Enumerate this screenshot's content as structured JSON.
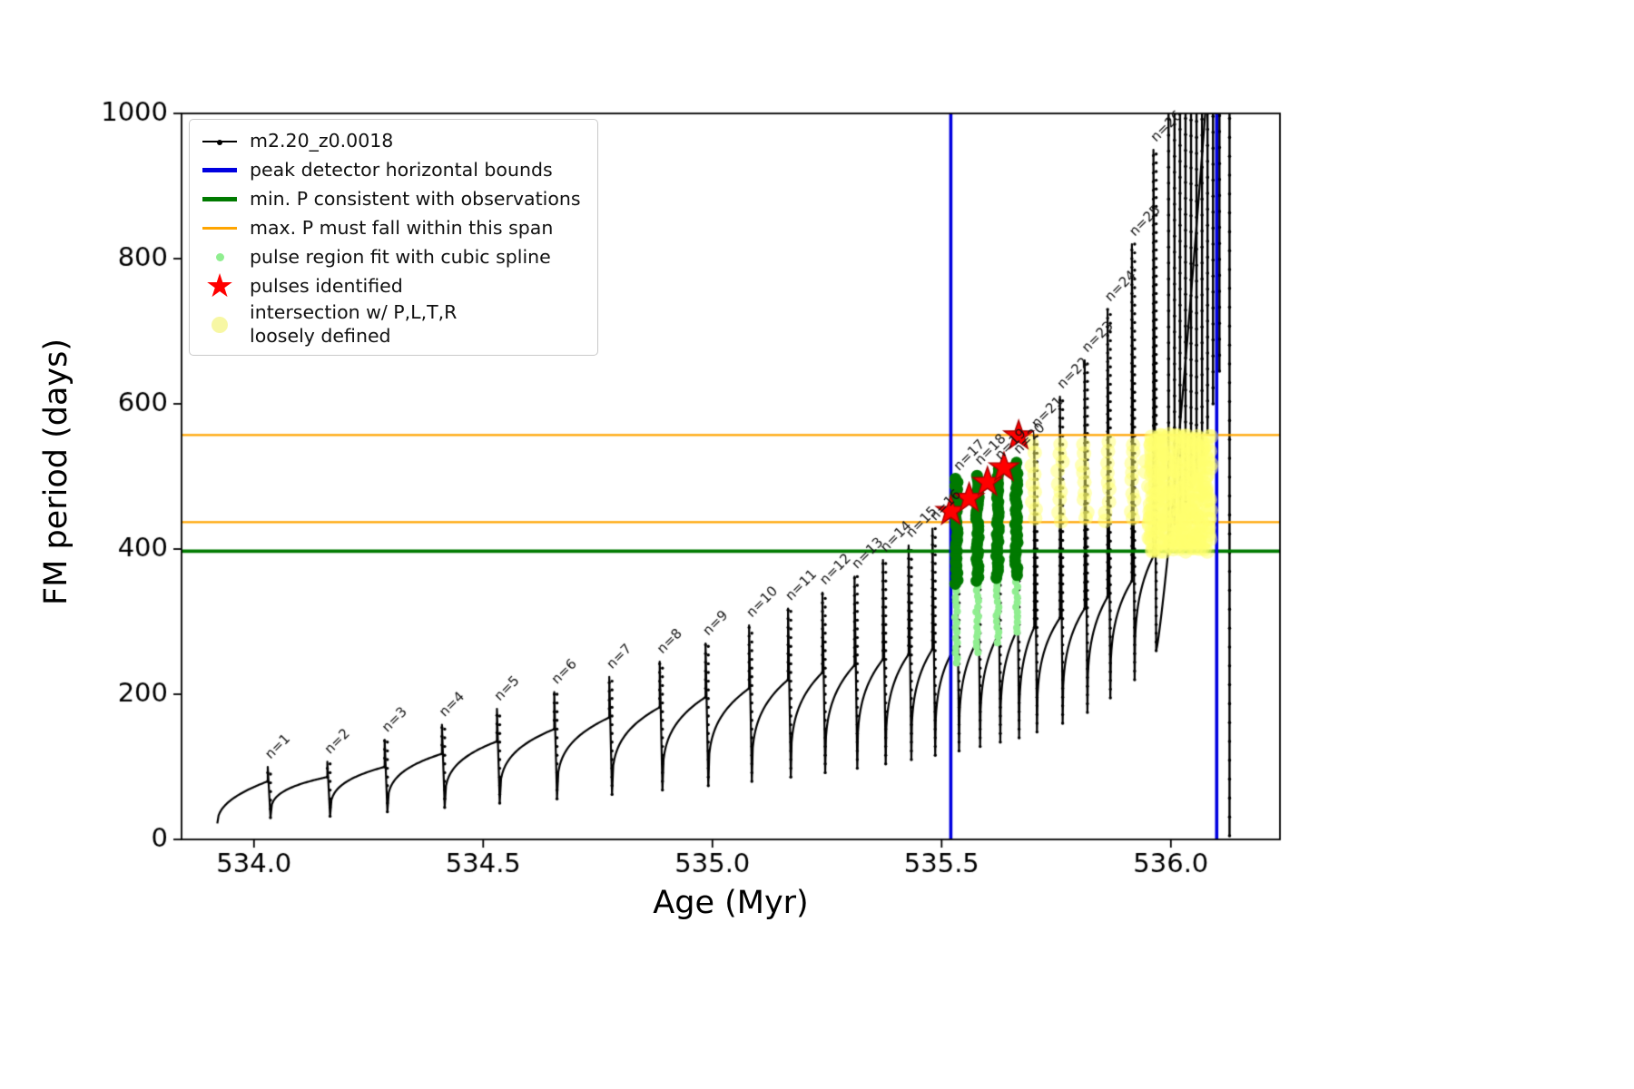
{
  "chart_data": {
    "type": "line",
    "title": "",
    "xlabel": "Age (Myr)",
    "ylabel": "FM period (days)",
    "xlim": [
      533.842,
      536.238
    ],
    "ylim": [
      0,
      1000
    ],
    "xticks": [
      534.0,
      534.5,
      535.0,
      535.5,
      536.0
    ],
    "xtick_labels": [
      "534.0",
      "534.5",
      "535.0",
      "535.5",
      "536.0"
    ],
    "yticks": [
      0,
      200,
      400,
      600,
      800,
      1000
    ],
    "ytick_labels": [
      "0",
      "200",
      "400",
      "600",
      "800",
      "1000"
    ],
    "series_name": "m2.20_z0.0018",
    "colors": {
      "track": "#000000",
      "bounds": "#0000e0",
      "min_p": "#007a00",
      "max_p": "#ffa500",
      "spline_light": "#90ee90",
      "spline_dark": "#007a00",
      "pulse_star": "#ff0000",
      "star_edge": "#a80000",
      "intersection": "rgba(255,255,110,0.5)",
      "label_text": "#111111"
    },
    "peak_detector_bounds_x": [
      535.52,
      536.1
    ],
    "min_p_consistent": 397,
    "max_p_span": [
      437,
      557
    ],
    "pre_track": {
      "t0": 533.92,
      "v0": 22,
      "exp": 0.45
    },
    "rise_exp": 0.3,
    "spike_width": 0.006,
    "pulses": [
      {
        "n": 1,
        "label": "n=1",
        "t": 534.03,
        "peak": 100,
        "plateau": 80,
        "dip": 30
      },
      {
        "n": 2,
        "label": "n=2",
        "t": 534.16,
        "peak": 107,
        "plateau": 86,
        "dip": 32
      },
      {
        "n": 3,
        "label": "n=3",
        "t": 534.285,
        "peak": 137,
        "plateau": 100,
        "dip": 38
      },
      {
        "n": 4,
        "label": "n=4",
        "t": 534.41,
        "peak": 158,
        "plateau": 118,
        "dip": 44
      },
      {
        "n": 5,
        "label": "n=5",
        "t": 534.53,
        "peak": 180,
        "plateau": 135,
        "dip": 50
      },
      {
        "n": 6,
        "label": "n=6",
        "t": 534.655,
        "peak": 203,
        "plateau": 152,
        "dip": 56
      },
      {
        "n": 7,
        "label": "n=7",
        "t": 534.775,
        "peak": 224,
        "plateau": 168,
        "dip": 62
      },
      {
        "n": 8,
        "label": "n=8",
        "t": 534.885,
        "peak": 245,
        "plateau": 182,
        "dip": 68
      },
      {
        "n": 9,
        "label": "n=9",
        "t": 534.985,
        "peak": 270,
        "plateau": 196,
        "dip": 74
      },
      {
        "n": 10,
        "label": "n=10",
        "t": 535.08,
        "peak": 295,
        "plateau": 208,
        "dip": 80
      },
      {
        "n": 11,
        "label": "n=11",
        "t": 535.165,
        "peak": 318,
        "plateau": 220,
        "dip": 86
      },
      {
        "n": 12,
        "label": "n=12",
        "t": 535.24,
        "peak": 340,
        "plateau": 230,
        "dip": 92
      },
      {
        "n": 13,
        "label": "n=13",
        "t": 535.31,
        "peak": 362,
        "plateau": 240,
        "dip": 98
      },
      {
        "n": 14,
        "label": "n=14",
        "t": 535.372,
        "peak": 385,
        "plateau": 248,
        "dip": 104
      },
      {
        "n": 15,
        "label": "n=15",
        "t": 535.428,
        "peak": 405,
        "plateau": 255,
        "dip": 110
      },
      {
        "n": 16,
        "label": "n=16",
        "t": 535.48,
        "peak": 428,
        "plateau": 262,
        "dip": 116
      },
      {
        "n": 17,
        "label": "n=17",
        "t": 535.532,
        "peak": 497,
        "plateau": 268,
        "dip": 122
      },
      {
        "n": 18,
        "label": "n=18",
        "t": 535.578,
        "peak": 505,
        "plateau": 274,
        "dip": 128
      },
      {
        "n": 19,
        "label": "n=19",
        "t": 535.622,
        "peak": 512,
        "plateau": 280,
        "dip": 134
      },
      {
        "n": 20,
        "label": "n=20",
        "t": 535.663,
        "peak": 520,
        "plateau": 286,
        "dip": 140
      },
      {
        "n": 21,
        "label": "n=21",
        "t": 535.702,
        "peak": 556,
        "plateau": 292,
        "dip": 148
      },
      {
        "n": 22,
        "label": "n=22",
        "t": 535.758,
        "peak": 610,
        "plateau": 305,
        "dip": 160
      },
      {
        "n": 23,
        "label": "n=23",
        "t": 535.812,
        "peak": 660,
        "plateau": 318,
        "dip": 175
      },
      {
        "n": 24,
        "label": "n=24",
        "t": 535.862,
        "peak": 730,
        "plateau": 334,
        "dip": 195
      },
      {
        "n": 25,
        "label": "n=25",
        "t": 535.915,
        "peak": 820,
        "plateau": 356,
        "dip": 220
      },
      {
        "n": 26,
        "label": "n=26",
        "t": 535.962,
        "peak": 950,
        "plateau": 390,
        "dip": 260
      }
    ],
    "final_rise": {
      "t1": 536.075,
      "v1": 1000,
      "exp": 1.2,
      "flat_to": 536.103
    },
    "band_spikes": {
      "x": [
        535.995,
        536.008,
        536.02,
        536.032,
        536.044,
        536.056,
        536.068,
        536.08,
        536.092,
        536.106
      ],
      "lo": [
        420,
        435,
        450,
        465,
        485,
        505,
        530,
        560,
        600,
        645
      ],
      "hi": 1000
    },
    "end_line": {
      "x": 536.128,
      "lo": 5,
      "hi": 1000
    },
    "spline_columns": [
      {
        "x": 535.532,
        "light_lo": 243,
        "dark_lo": 352,
        "hi": 497
      },
      {
        "x": 535.578,
        "light_lo": 258,
        "dark_lo": 356,
        "hi": 505
      },
      {
        "x": 535.622,
        "light_lo": 272,
        "dark_lo": 360,
        "hi": 512
      },
      {
        "x": 535.663,
        "light_lo": 285,
        "dark_lo": 364,
        "hi": 520
      }
    ],
    "stars": [
      [
        535.52,
        452
      ],
      [
        535.56,
        470
      ],
      [
        535.6,
        492
      ],
      [
        535.636,
        512
      ],
      [
        535.668,
        556
      ]
    ],
    "yellow": {
      "columns_x": [
        535.702,
        535.758,
        535.812,
        535.862,
        535.915
      ],
      "col_y": [
        440,
        556,
        13
      ],
      "blob_x": [
        535.952,
        536.085,
        0.0065
      ],
      "blob_y": [
        400,
        560,
        11
      ],
      "r": 8
    }
  },
  "legend": {
    "items": [
      {
        "label": "m2.20_z0.0018",
        "marker": "line-dot"
      },
      {
        "label": "peak detector horizontal bounds",
        "marker": "thick-blue-line"
      },
      {
        "label": "min. P consistent with observations",
        "marker": "thick-green-line"
      },
      {
        "label": "max. P must fall within this span",
        "marker": "orange-line"
      },
      {
        "label": "pulse region fit with cubic spline",
        "marker": "light-green-dot"
      },
      {
        "label": "pulses identified",
        "marker": "red-star"
      },
      {
        "label": "intersection w/ P,L,T,R\nloosely defined",
        "marker": "yellow-dot"
      }
    ]
  }
}
